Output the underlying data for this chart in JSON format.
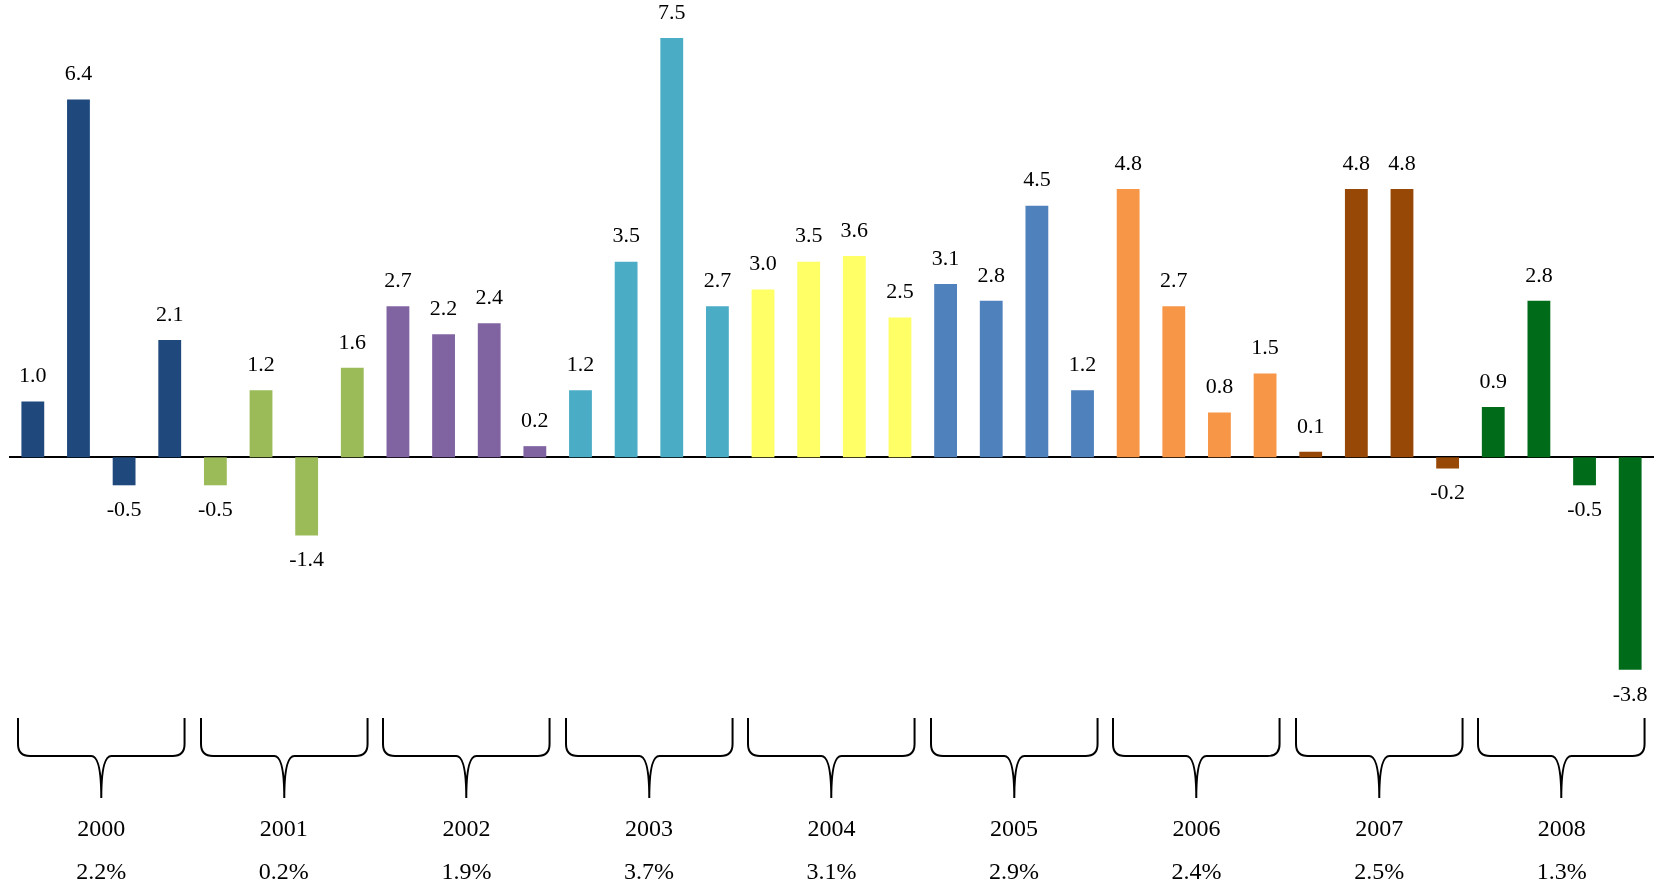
{
  "chart_data": {
    "type": "bar",
    "categories": [
      "2000",
      "2001",
      "2002",
      "2003",
      "2004",
      "2005",
      "2006",
      "2007",
      "2008"
    ],
    "series": [
      {
        "values": [
          1.0,
          -0.5,
          2.7,
          1.2,
          3.0,
          3.1,
          4.8,
          0.1,
          0.9
        ],
        "value_labels": [
          "1.0",
          "-0.5",
          "2.7",
          "1.2",
          "3.0",
          "3.1",
          "4.8",
          "0.1",
          "0.9"
        ],
        "colors": [
          "#1f497d",
          "#9bbb59",
          "#8064a2",
          "#4bacc6",
          "#ffff66",
          "#4f81bd",
          "#f79646",
          "#974806",
          "#006c1a"
        ]
      },
      {
        "values": [
          6.4,
          1.2,
          2.2,
          3.5,
          3.5,
          2.8,
          2.7,
          4.8,
          2.8
        ],
        "value_labels": [
          "6.4",
          "1.2",
          "2.2",
          "3.5",
          "3.5",
          "2.8",
          "2.7",
          "4.8",
          "2.8"
        ],
        "colors": [
          "#1f497d",
          "#9bbb59",
          "#8064a2",
          "#4bacc6",
          "#ffff66",
          "#4f81bd",
          "#f79646",
          "#974806",
          "#006c1a"
        ]
      },
      {
        "values": [
          -0.5,
          -1.4,
          2.4,
          7.5,
          3.6,
          4.5,
          0.8,
          4.8,
          -0.5
        ],
        "value_labels": [
          "-0.5",
          "-1.4",
          "2.4",
          "7.5",
          "3.6",
          "4.5",
          "0.8",
          "4.8",
          "-0.5"
        ],
        "colors": [
          "#1f497d",
          "#9bbb59",
          "#8064a2",
          "#4bacc6",
          "#ffff66",
          "#4f81bd",
          "#f79646",
          "#974806",
          "#006c1a"
        ]
      },
      {
        "values": [
          2.1,
          1.6,
          0.2,
          2.7,
          2.5,
          1.2,
          1.5,
          -0.2,
          -3.8
        ],
        "value_labels": [
          "2.1",
          "1.6",
          "0.2",
          "2.7",
          "2.5",
          "1.2",
          "1.5",
          "-0.2",
          "-3.8"
        ],
        "colors": [
          "#1f497d",
          "#9bbb59",
          "#8064a2",
          "#4bacc6",
          "#ffff66",
          "#4f81bd",
          "#f79646",
          "#974806",
          "#006c1a"
        ]
      }
    ],
    "grid": false,
    "legend": false,
    "annotations": [
      "2.2%",
      "0.2%",
      "1.9%",
      "3.7%",
      "3.1%",
      "2.9%",
      "2.4%",
      "2.5%",
      "1.3%"
    ]
  }
}
